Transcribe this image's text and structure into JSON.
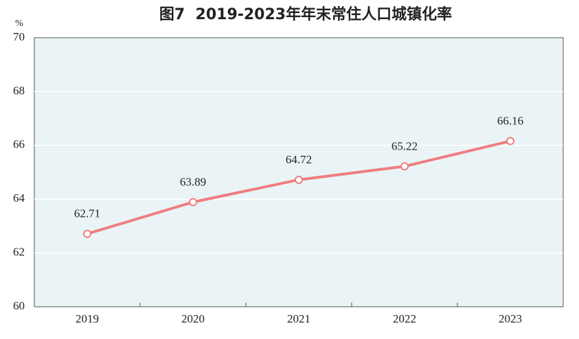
{
  "chart_data": {
    "type": "line",
    "title": "图7  2019-2023年年末常住人口城镇化率",
    "y_unit": "%",
    "categories": [
      "2019",
      "2020",
      "2021",
      "2022",
      "2023"
    ],
    "values": [
      62.71,
      63.89,
      64.72,
      65.22,
      66.16
    ],
    "color": "#ef7d7f",
    "ylim": [
      60,
      70
    ],
    "yticks": [
      60,
      62,
      64,
      66,
      68,
      70
    ],
    "grid": true
  }
}
